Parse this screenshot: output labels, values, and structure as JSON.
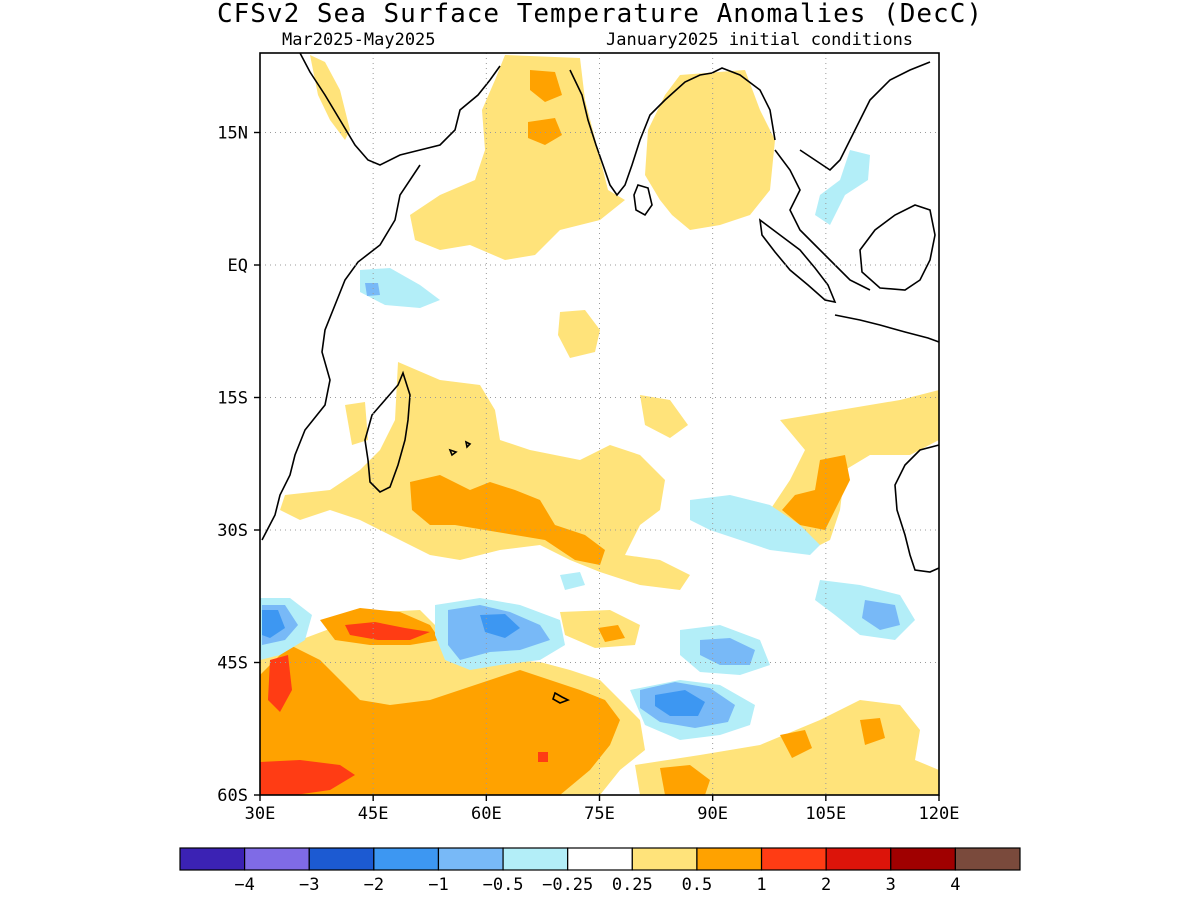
{
  "title": "CFSv2 Sea Surface Temperature Anomalies (DecC)",
  "subtitle_left": "Mar2025-May2025",
  "subtitle_right": "January2025 initial conditions",
  "map": {
    "lon_range": [
      30,
      120
    ],
    "lat_range": [
      -60,
      24
    ],
    "lon_ticks": [
      {
        "value": 30,
        "label": "30E"
      },
      {
        "value": 45,
        "label": "45E"
      },
      {
        "value": 60,
        "label": "60E"
      },
      {
        "value": 75,
        "label": "75E"
      },
      {
        "value": 90,
        "label": "90E"
      },
      {
        "value": 105,
        "label": "105E"
      },
      {
        "value": 120,
        "label": "120E"
      }
    ],
    "lat_ticks": [
      {
        "value": 15,
        "label": "15N"
      },
      {
        "value": 0,
        "label": "EQ"
      },
      {
        "value": -15,
        "label": "15S"
      },
      {
        "value": -30,
        "label": "30S"
      },
      {
        "value": -45,
        "label": "45S"
      },
      {
        "value": -60,
        "label": "60S"
      }
    ],
    "grid": true
  },
  "colorbar": {
    "colors": [
      "#3b22b4",
      "#7f6be6",
      "#1c5ad2",
      "#3d97f2",
      "#78b9f7",
      "#b3eef8",
      "#ffffff",
      "#ffe37a",
      "#ffa200",
      "#ff3c14",
      "#dc140a",
      "#a00000",
      "#7a4a3c"
    ],
    "labels": [
      "-4",
      "-3",
      "-2",
      "-1",
      "-0.5",
      "-0.25",
      "0.25",
      "0.5",
      "1",
      "2",
      "3",
      "4"
    ]
  },
  "palette": {
    "light_cyan": "#b3eef8",
    "light_blue": "#78b9f7",
    "blue": "#3d97f2",
    "yellow": "#ffe37a",
    "orange": "#ffa200",
    "red_orange": "#ff3c14"
  }
}
